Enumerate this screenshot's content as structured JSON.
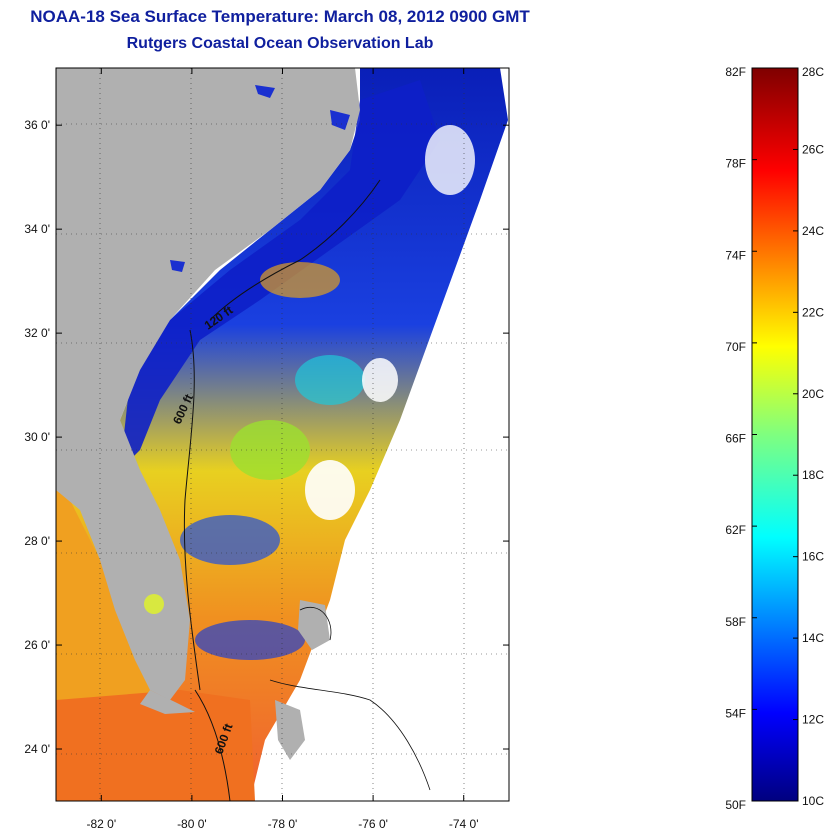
{
  "title_line1": "NOAA-18 Sea Surface Temperature:  March 08, 2012 0900 GMT",
  "title_line2": "Rutgers Coastal Ocean Observation Lab",
  "map": {
    "lat_ticks": [
      {
        "value": 24,
        "label": "24 0'"
      },
      {
        "value": 26,
        "label": "26 0'"
      },
      {
        "value": 28,
        "label": "28 0'"
      },
      {
        "value": 30,
        "label": "30 0'"
      },
      {
        "value": 32,
        "label": "32 0'"
      },
      {
        "value": 34,
        "label": "34 0'"
      },
      {
        "value": 36,
        "label": "36 0'"
      }
    ],
    "lon_ticks": [
      {
        "value": -82,
        "label": "-82 0'"
      },
      {
        "value": -80,
        "label": "-80 0'"
      },
      {
        "value": -78,
        "label": "-78 0'"
      },
      {
        "value": -76,
        "label": "-76 0'"
      },
      {
        "value": -74,
        "label": "-74 0'"
      }
    ],
    "lat_range": [
      23.0,
      37.1
    ],
    "lon_range": [
      -83.0,
      -73.0
    ],
    "contour_labels": [
      "120 ft",
      "600 ft",
      "600 ft"
    ],
    "land_color": "#b0b0b0"
  },
  "colorbar": {
    "fahrenheit": [
      "82F",
      "78F",
      "74F",
      "70F",
      "66F",
      "62F",
      "58F",
      "54F",
      "50F"
    ],
    "celsius": [
      "28C",
      "26C",
      "24C",
      "22C",
      "20C",
      "18C",
      "16C",
      "14C",
      "12C",
      "10C"
    ]
  }
}
